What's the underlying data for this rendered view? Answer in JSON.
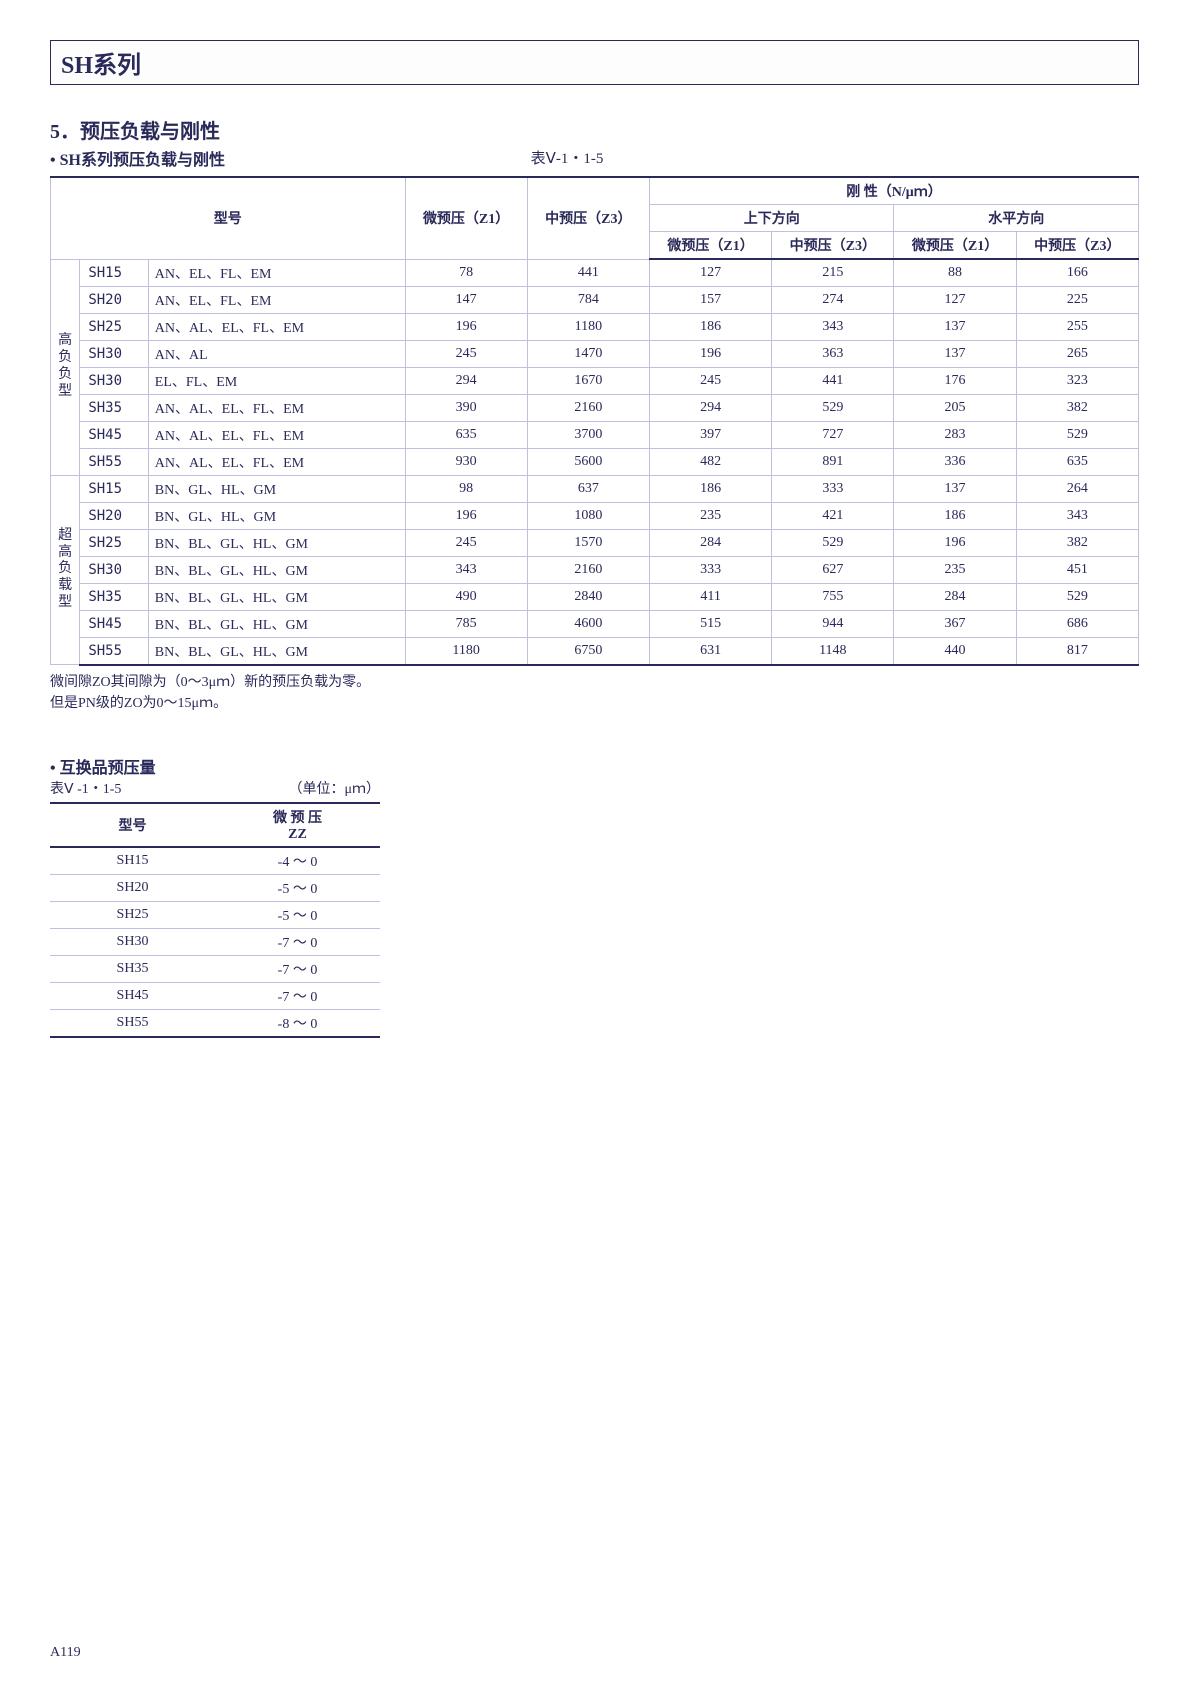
{
  "page": {
    "series_title": "SH系列",
    "section_number": "5．预压负载与刚性",
    "section_sub": "• SH系列预压负载与刚性",
    "table1_caption": "表Ⅴ-1・1-5",
    "page_number": "A119"
  },
  "table1": {
    "headers": {
      "model": "型号",
      "rigidity_title": "刚 性（N/μｍ）",
      "vert_dir": "上下方向",
      "horiz_dir": "水平方向",
      "z1a": "微预压（Z1）",
      "z3a": "中预压（Z3）",
      "z1b": "微预压（Z1）",
      "z3b": "中预压（Z3）",
      "z1c": "微预压（Z1）",
      "z3c": "中预压（Z3）"
    },
    "group1_label": [
      "高",
      "负",
      "负",
      "型"
    ],
    "group2_label": [
      "超",
      "高",
      "负",
      "载",
      "型"
    ],
    "group1_rows": [
      {
        "code": "SH15",
        "variants": "AN、EL、FL、EM",
        "v": [
          78,
          441,
          127,
          215,
          88,
          166
        ]
      },
      {
        "code": "SH20",
        "variants": "AN、EL、FL、EM",
        "v": [
          147,
          784,
          157,
          274,
          127,
          225
        ]
      },
      {
        "code": "SH25",
        "variants": "AN、AL、EL、FL、EM",
        "v": [
          196,
          1180,
          186,
          343,
          137,
          255
        ]
      },
      {
        "code": "SH30",
        "variants": "AN、AL",
        "v": [
          245,
          1470,
          196,
          363,
          137,
          265
        ]
      },
      {
        "code": "SH30",
        "variants": "EL、FL、EM",
        "v": [
          294,
          1670,
          245,
          441,
          176,
          323
        ]
      },
      {
        "code": "SH35",
        "variants": "AN、AL、EL、FL、EM",
        "v": [
          390,
          2160,
          294,
          529,
          205,
          382
        ]
      },
      {
        "code": "SH45",
        "variants": "AN、AL、EL、FL、EM",
        "v": [
          635,
          3700,
          397,
          727,
          283,
          529
        ]
      },
      {
        "code": "SH55",
        "variants": "AN、AL、EL、FL、EM",
        "v": [
          930,
          5600,
          482,
          891,
          336,
          635
        ]
      }
    ],
    "group2_rows": [
      {
        "code": "SH15",
        "variants": "BN、GL、HL、GM",
        "v": [
          98,
          637,
          186,
          333,
          137,
          264
        ]
      },
      {
        "code": "SH20",
        "variants": "BN、GL、HL、GM",
        "v": [
          196,
          1080,
          235,
          421,
          186,
          343
        ]
      },
      {
        "code": "SH25",
        "variants": "BN、BL、GL、HL、GM",
        "v": [
          245,
          1570,
          284,
          529,
          196,
          382
        ]
      },
      {
        "code": "SH30",
        "variants": "BN、BL、GL、HL、GM",
        "v": [
          343,
          2160,
          333,
          627,
          235,
          451
        ]
      },
      {
        "code": "SH35",
        "variants": "BN、BL、GL、HL、GM",
        "v": [
          490,
          2840,
          411,
          755,
          284,
          529
        ]
      },
      {
        "code": "SH45",
        "variants": "BN、BL、GL、HL、GM",
        "v": [
          785,
          4600,
          515,
          944,
          367,
          686
        ]
      },
      {
        "code": "SH55",
        "variants": "BN、BL、GL、HL、GM",
        "v": [
          1180,
          6750,
          631,
          1148,
          440,
          817
        ]
      }
    ]
  },
  "notes": {
    "n1": "微间隙ZO其间隙为（0～3μｍ）新的预压负载为零。",
    "n2": "但是PN级的ZO为0～15μｍ。"
  },
  "section2": {
    "title": "• 互换品预压量",
    "caption_left": "表Ⅴ -1・1-5",
    "caption_right": "（单位：μｍ）",
    "col_code": "型号",
    "col_val": "微 预 压\nZZ",
    "rows": [
      {
        "code": "SH15",
        "val": "-4 ～ 0"
      },
      {
        "code": "SH20",
        "val": "-5 ～ 0"
      },
      {
        "code": "SH25",
        "val": "-5 ～ 0"
      },
      {
        "code": "SH30",
        "val": "-7 ～ 0"
      },
      {
        "code": "SH35",
        "val": "-7 ～ 0"
      },
      {
        "code": "SH45",
        "val": "-7 ～ 0"
      },
      {
        "code": "SH55",
        "val": "-8 ～ 0"
      }
    ]
  }
}
